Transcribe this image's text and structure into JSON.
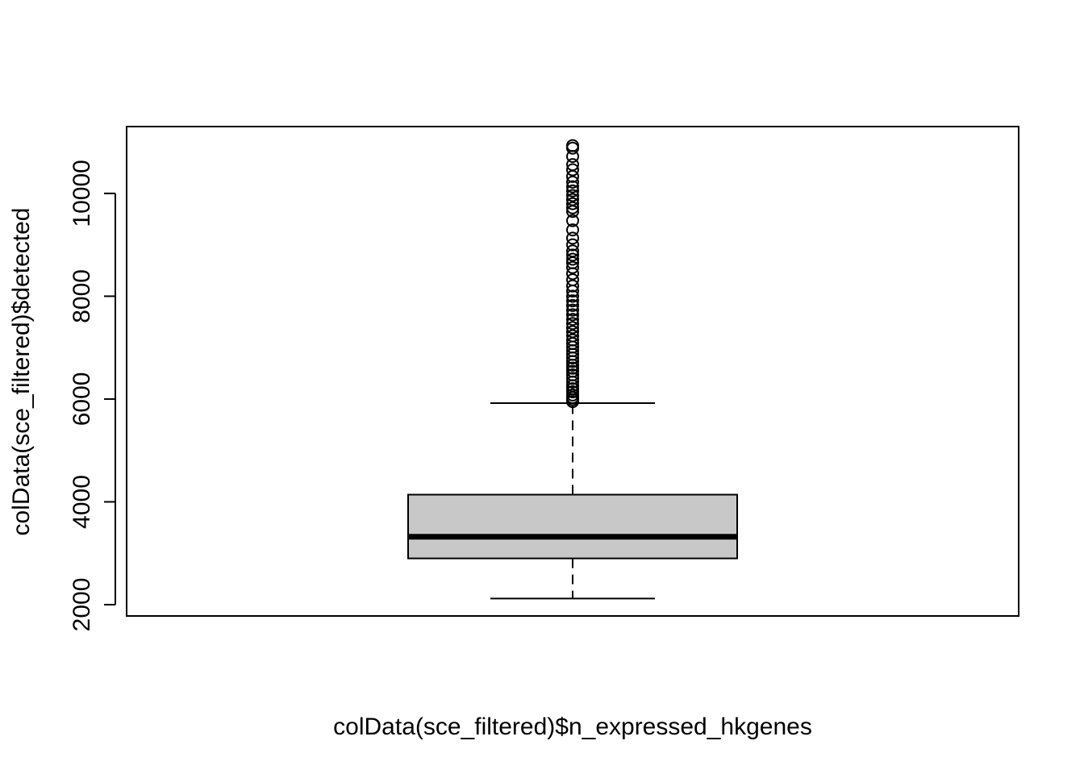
{
  "chart_data": {
    "type": "box",
    "title": "",
    "xlabel": "colData(sce_filtered)$n_expressed_hkgenes",
    "ylabel": "colData(sce_filtered)$detected",
    "ylim": [
      1780,
      11300
    ],
    "yticks": [
      2000,
      4000,
      6000,
      8000,
      10000
    ],
    "ytick_labels": [
      "2000",
      "4000",
      "6000",
      "8000",
      "10000"
    ],
    "grid": false,
    "legend": "none",
    "box": {
      "whisker_low": 2120,
      "q1": 2900,
      "median": 3320,
      "q3": 4140,
      "whisker_high": 5920,
      "fill": "#c8c8c8"
    },
    "outliers": [
      5950,
      5990,
      6030,
      6080,
      6140,
      6200,
      6260,
      6330,
      6400,
      6470,
      6540,
      6600,
      6660,
      6730,
      6800,
      6870,
      6940,
      7010,
      7080,
      7150,
      7230,
      7310,
      7390,
      7470,
      7550,
      7640,
      7730,
      7820,
      7910,
      8000,
      8100,
      8200,
      8320,
      8440,
      8560,
      8650,
      8720,
      8800,
      8880,
      9000,
      9130,
      9290,
      9470,
      9650,
      9720,
      9800,
      9880,
      9960,
      10050,
      10130,
      10220,
      10330,
      10460,
      10560,
      10720,
      10880,
      10930
    ]
  }
}
